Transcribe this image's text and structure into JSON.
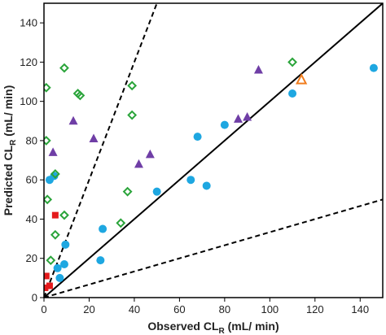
{
  "chart_data": {
    "type": "scatter",
    "xlabel": "Observed CL",
    "xlabel_sub": "R",
    "xlabel_unit": " (mL/ min)",
    "ylabel": "Predicted CL",
    "ylabel_sub": "R",
    "ylabel_unit": " (mL/ min)",
    "xlim": [
      0,
      150
    ],
    "ylim": [
      0,
      150
    ],
    "xticks": [
      0,
      20,
      40,
      60,
      80,
      100,
      120,
      140
    ],
    "yticks": [
      0,
      20,
      40,
      60,
      80,
      100,
      120,
      140
    ],
    "grid": false,
    "reference_lines": [
      {
        "slope": 1,
        "style": "solid",
        "color": "#000000"
      },
      {
        "slope": 3,
        "style": "dashed",
        "color": "#000000"
      },
      {
        "slope": 0.3333,
        "style": "dashed",
        "color": "#000000"
      }
    ],
    "series": [
      {
        "marker": "circle",
        "color": "#1ea7e1",
        "points": [
          [
            2.5,
            60
          ],
          [
            4.5,
            62
          ],
          [
            6,
            15
          ],
          [
            7,
            10
          ],
          [
            9,
            17
          ],
          [
            9.5,
            27
          ],
          [
            25,
            19
          ],
          [
            26,
            35
          ],
          [
            50,
            54
          ],
          [
            65,
            60
          ],
          [
            68,
            82
          ],
          [
            72,
            57
          ],
          [
            80,
            88
          ],
          [
            110,
            104
          ],
          [
            146,
            117
          ]
        ]
      },
      {
        "marker": "triangle",
        "color": "#6f3ea6",
        "points": [
          [
            4,
            74
          ],
          [
            13,
            90
          ],
          [
            22,
            81
          ],
          [
            42,
            68
          ],
          [
            47,
            73
          ],
          [
            86,
            91
          ],
          [
            90,
            92
          ],
          [
            95,
            116
          ]
        ]
      },
      {
        "marker": "diamond-open",
        "color": "#2aa43a",
        "points": [
          [
            1,
            107
          ],
          [
            1,
            80
          ],
          [
            1.5,
            50
          ],
          [
            3,
            19
          ],
          [
            5,
            32
          ],
          [
            5,
            63
          ],
          [
            9,
            42
          ],
          [
            9,
            117
          ],
          [
            15,
            104
          ],
          [
            16,
            103
          ],
          [
            34,
            38
          ],
          [
            37,
            54
          ],
          [
            39,
            108
          ],
          [
            39,
            93
          ],
          [
            110,
            120
          ]
        ]
      },
      {
        "marker": "square",
        "color": "#e41a1c",
        "points": [
          [
            0.5,
            5
          ],
          [
            1,
            11
          ],
          [
            2.5,
            6
          ],
          [
            5,
            42
          ]
        ]
      },
      {
        "marker": "triangle-open",
        "color": "#f07d1e",
        "points": [
          [
            114,
            111
          ]
        ]
      }
    ]
  }
}
